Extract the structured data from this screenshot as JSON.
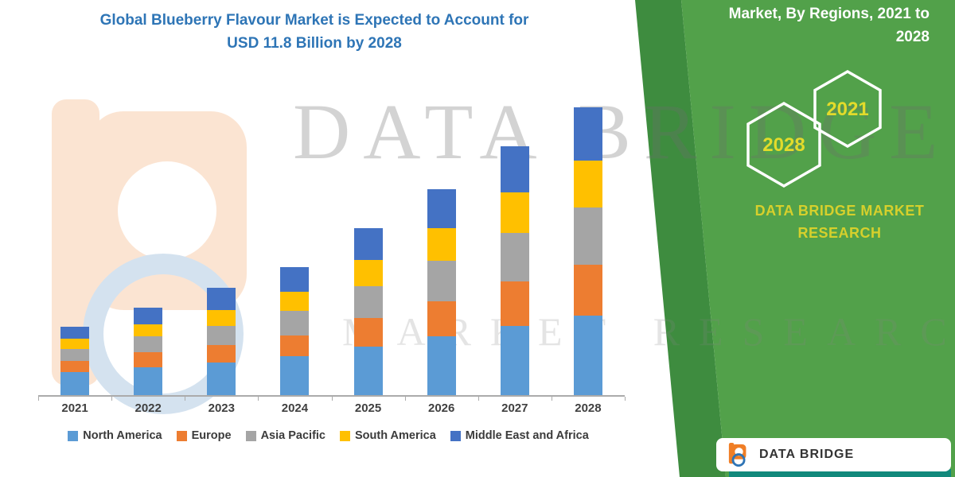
{
  "title": {
    "line1": "Global Blueberry Flavour Market is Expected to Account for",
    "line2": "USD 11.8 Billion by 2028",
    "color": "#2E75B6"
  },
  "watermark": {
    "line1": "DATA BRIDGE",
    "line2": "MARKET RESEARCH"
  },
  "side_panel": {
    "heading_line1": "Market, By Regions, 2021 to",
    "heading_line2": "2028",
    "hexagons": [
      {
        "label": "2028"
      },
      {
        "label": "2021"
      }
    ],
    "brand_line1": "DATA BRIDGE MARKET",
    "brand_line2": "RESEARCH",
    "colors": {
      "panel": "#52A14A",
      "panel_dark": "#3E8C3F",
      "accent_text": "#D6D02C"
    }
  },
  "footer_logo": {
    "brand": "DATA BRIDGE"
  },
  "chart_data": {
    "type": "bar",
    "stacked": true,
    "title": "Global Blueberry Flavour Market is Expected to Account for USD 11.8 Billion by 2028",
    "categories": [
      "2021",
      "2022",
      "2023",
      "2024",
      "2025",
      "2026",
      "2027",
      "2028"
    ],
    "series": [
      {
        "name": "North America",
        "color": "#5B9BD5",
        "values": [
          0.95,
          1.15,
          1.35,
          1.6,
          2.0,
          2.4,
          2.85,
          3.25
        ]
      },
      {
        "name": "Europe",
        "color": "#ED7D31",
        "values": [
          0.45,
          0.6,
          0.7,
          0.85,
          1.15,
          1.45,
          1.8,
          2.1
        ]
      },
      {
        "name": "Asia Pacific",
        "color": "#A5A5A5",
        "values": [
          0.5,
          0.65,
          0.8,
          1.0,
          1.3,
          1.65,
          2.0,
          2.35
        ]
      },
      {
        "name": "South America",
        "color": "#FFC000",
        "values": [
          0.4,
          0.5,
          0.65,
          0.8,
          1.1,
          1.35,
          1.65,
          1.9
        ]
      },
      {
        "name": "Middle East and Africa",
        "color": "#4472C4",
        "values": [
          0.5,
          0.7,
          0.9,
          1.0,
          1.3,
          1.6,
          1.9,
          2.2
        ]
      }
    ],
    "totals": [
      2.8,
      3.6,
      4.4,
      5.25,
      6.85,
      8.45,
      10.2,
      11.8
    ],
    "value_unit": "USD Billion (estimated from bar heights)",
    "ylim": [
      0,
      12
    ],
    "legend_position": "bottom",
    "gridlines": false
  }
}
